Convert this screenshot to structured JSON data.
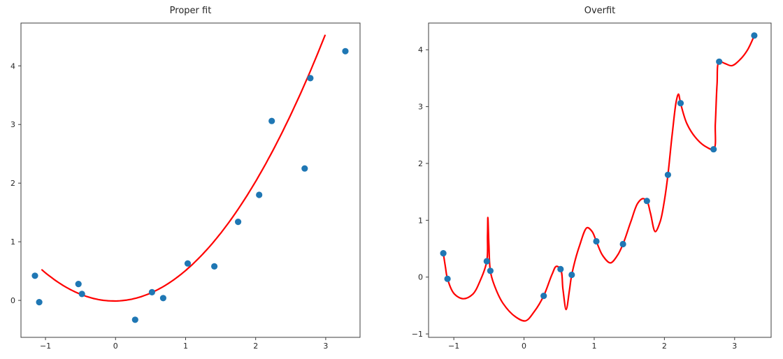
{
  "figure": {
    "background": "#ffffff",
    "text_color": "#262626",
    "spine_color": "#3c3c3c"
  },
  "chart_data": [
    {
      "type": "scatter",
      "title": "Proper fit",
      "xlim": [
        -1.35,
        3.49
      ],
      "ylim": [
        -0.63,
        4.73
      ],
      "xticks": [
        -1,
        0,
        1,
        2,
        3
      ],
      "xtick_labels": [
        "−1",
        "0",
        "1",
        "2",
        "3"
      ],
      "yticks": [
        0,
        1,
        2,
        3,
        4
      ],
      "ytick_labels": [
        "0",
        "1",
        "2",
        "3",
        "4"
      ],
      "grid": false,
      "legend": null,
      "scatter": {
        "color": "#1f77b4",
        "x": [
          -1.15,
          -1.09,
          -0.53,
          -0.48,
          0.28,
          0.52,
          0.68,
          1.03,
          1.41,
          1.75,
          2.05,
          2.23,
          2.7,
          2.78,
          3.28
        ],
        "y": [
          0.42,
          -0.03,
          0.28,
          0.11,
          -0.33,
          0.14,
          0.04,
          0.63,
          0.58,
          1.34,
          1.8,
          3.06,
          2.25,
          3.79,
          4.25
        ]
      },
      "curve": {
        "kind": "polynomial",
        "equation": "y = 0.5x^2 + 0.02x - 0.01",
        "coeffs": [
          0.5,
          0.02,
          -0.01
        ],
        "x_range": [
          -1.05,
          2.99
        ],
        "color": "#ff0000"
      }
    },
    {
      "type": "scatter",
      "title": "Overfit",
      "xlim": [
        -1.36,
        3.52
      ],
      "ylim": [
        -1.06,
        4.47
      ],
      "xticks": [
        -1,
        0,
        1,
        2,
        3
      ],
      "xtick_labels": [
        "−1",
        "0",
        "1",
        "2",
        "3"
      ],
      "yticks": [
        -1,
        0,
        1,
        2,
        3,
        4
      ],
      "ytick_labels": [
        "−1",
        "0",
        "1",
        "2",
        "3",
        "4"
      ],
      "grid": false,
      "legend": null,
      "scatter": {
        "color": "#1f77b4",
        "x": [
          -1.15,
          -1.09,
          -0.53,
          -0.48,
          0.28,
          0.52,
          0.68,
          1.03,
          1.41,
          1.75,
          2.05,
          2.23,
          2.7,
          2.78,
          3.28
        ],
        "y": [
          0.42,
          -0.03,
          0.28,
          0.11,
          -0.33,
          0.14,
          0.04,
          0.63,
          0.58,
          1.34,
          1.8,
          3.06,
          2.25,
          3.79,
          4.25
        ]
      },
      "curve": {
        "kind": "keypoints",
        "color": "#ff0000",
        "points": [
          [
            -1.15,
            0.42
          ],
          [
            -1.12,
            0.18
          ],
          [
            -1.09,
            -0.03
          ],
          [
            -0.99,
            -0.3
          ],
          [
            -0.86,
            -0.38
          ],
          [
            -0.73,
            -0.3
          ],
          [
            -0.62,
            -0.05
          ],
          [
            -0.53,
            0.28
          ],
          [
            -0.52,
            0.72
          ],
          [
            -0.515,
            1.05
          ],
          [
            -0.5,
            0.55
          ],
          [
            -0.48,
            0.11
          ],
          [
            -0.43,
            -0.12
          ],
          [
            -0.3,
            -0.46
          ],
          [
            -0.12,
            -0.7
          ],
          [
            0.02,
            -0.77
          ],
          [
            0.15,
            -0.6
          ],
          [
            0.28,
            -0.33
          ],
          [
            0.4,
            0.05
          ],
          [
            0.46,
            0.19
          ],
          [
            0.52,
            0.14
          ],
          [
            0.555,
            -0.22
          ],
          [
            0.6,
            -0.57
          ],
          [
            0.645,
            -0.25
          ],
          [
            0.68,
            0.04
          ],
          [
            0.79,
            0.55
          ],
          [
            0.9,
            0.87
          ],
          [
            0.97,
            0.8
          ],
          [
            1.03,
            0.63
          ],
          [
            1.12,
            0.38
          ],
          [
            1.23,
            0.25
          ],
          [
            1.33,
            0.38
          ],
          [
            1.41,
            0.58
          ],
          [
            1.52,
            0.97
          ],
          [
            1.62,
            1.3
          ],
          [
            1.69,
            1.38
          ],
          [
            1.75,
            1.34
          ],
          [
            1.8,
            1.13
          ],
          [
            1.87,
            0.8
          ],
          [
            1.94,
            0.98
          ],
          [
            2.0,
            1.35
          ],
          [
            2.05,
            1.8
          ],
          [
            2.11,
            2.5
          ],
          [
            2.17,
            3.1
          ],
          [
            2.2,
            3.22
          ],
          [
            2.23,
            3.06
          ],
          [
            2.32,
            2.7
          ],
          [
            2.44,
            2.46
          ],
          [
            2.57,
            2.31
          ],
          [
            2.7,
            2.25
          ],
          [
            2.725,
            2.7
          ],
          [
            2.75,
            3.4
          ],
          [
            2.78,
            3.79
          ],
          [
            2.86,
            3.76
          ],
          [
            2.96,
            3.72
          ],
          [
            3.08,
            3.83
          ],
          [
            3.18,
            3.99
          ],
          [
            3.28,
            4.25
          ]
        ]
      }
    }
  ]
}
